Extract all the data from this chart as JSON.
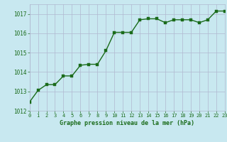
{
  "x": [
    0,
    1,
    2,
    3,
    4,
    5,
    6,
    7,
    8,
    9,
    10,
    11,
    12,
    13,
    14,
    15,
    16,
    17,
    18,
    19,
    20,
    21,
    22,
    23
  ],
  "y": [
    1012.45,
    1013.05,
    1013.35,
    1013.35,
    1013.8,
    1013.8,
    1014.35,
    1014.4,
    1014.4,
    1015.1,
    1016.05,
    1016.05,
    1016.05,
    1016.7,
    1016.75,
    1016.75,
    1016.55,
    1016.7,
    1016.7,
    1016.7,
    1016.55,
    1016.7,
    1017.15,
    1017.15
  ],
  "line_color": "#1a6b1a",
  "marker_color": "#1a6b1a",
  "bg_color": "#c8e8f0",
  "grid_color": "#b0b8d0",
  "xlabel": "Graphe pression niveau de la mer (hPa)",
  "xlabel_color": "#1a6b1a",
  "tick_color": "#1a6b1a",
  "ylim": [
    1012,
    1017.5
  ],
  "xlim": [
    0,
    23
  ],
  "yticks": [
    1012,
    1013,
    1014,
    1015,
    1016,
    1017
  ],
  "xticks": [
    0,
    1,
    2,
    3,
    4,
    5,
    6,
    7,
    8,
    9,
    10,
    11,
    12,
    13,
    14,
    15,
    16,
    17,
    18,
    19,
    20,
    21,
    22,
    23
  ],
  "marker_size": 2.8,
  "line_width": 1.0
}
